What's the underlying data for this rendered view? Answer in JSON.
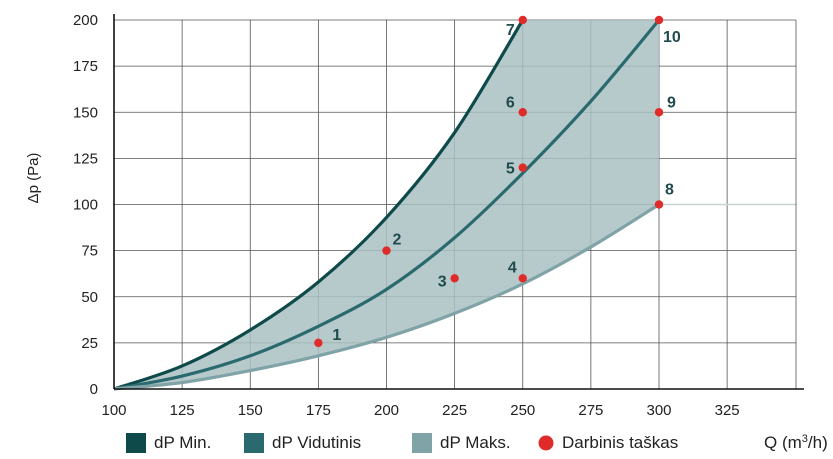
{
  "chart_data": {
    "type": "line",
    "ylabel": "Δp (Pa)",
    "xlabel_prefix": "Q (m",
    "xlabel_sup": "3",
    "xlabel_suffix": "/h)",
    "xlim": [
      100,
      350
    ],
    "ylim": [
      0,
      200
    ],
    "xticks": [
      100,
      125,
      150,
      175,
      200,
      225,
      250,
      275,
      300,
      325
    ],
    "yticks": [
      0,
      25,
      50,
      75,
      100,
      125,
      150,
      175,
      200
    ],
    "grid": true,
    "legend_position": "bottom",
    "series": [
      {
        "name": "dP Min.",
        "color": "#0f4a4b",
        "x": [
          100,
          125,
          150,
          175,
          200,
          225,
          250
        ],
        "y": [
          0,
          12.5,
          32,
          58,
          93,
          139,
          200
        ]
      },
      {
        "name": "dP Vidutinis",
        "color": "#2a6a6e",
        "x": [
          100,
          125,
          150,
          175,
          200,
          225,
          250,
          275,
          300
        ],
        "y": [
          0,
          7,
          18,
          34,
          54,
          82,
          117,
          156,
          200
        ]
      },
      {
        "name": "dP Maks.",
        "color": "#7fa3a6",
        "x": [
          100,
          125,
          150,
          175,
          200,
          225,
          250,
          275,
          300,
          350
        ],
        "y": [
          0,
          3.5,
          10,
          18,
          28,
          41,
          57,
          77,
          100,
          100
        ]
      }
    ],
    "operating_points_name": "Darbinis taškas",
    "operating_points_color": "#e02b2b",
    "operating_points": [
      {
        "label": "1",
        "x": 175,
        "y": 25
      },
      {
        "label": "2",
        "x": 200,
        "y": 75
      },
      {
        "label": "3",
        "x": 225,
        "y": 60
      },
      {
        "label": "4",
        "x": 250,
        "y": 60
      },
      {
        "label": "5",
        "x": 250,
        "y": 120
      },
      {
        "label": "6",
        "x": 250,
        "y": 150
      },
      {
        "label": "7",
        "x": 250,
        "y": 200
      },
      {
        "label": "8",
        "x": 300,
        "y": 100
      },
      {
        "label": "9",
        "x": 300,
        "y": 150
      },
      {
        "label": "10",
        "x": 300,
        "y": 200
      }
    ],
    "fill_color": "#a9c1c2"
  }
}
